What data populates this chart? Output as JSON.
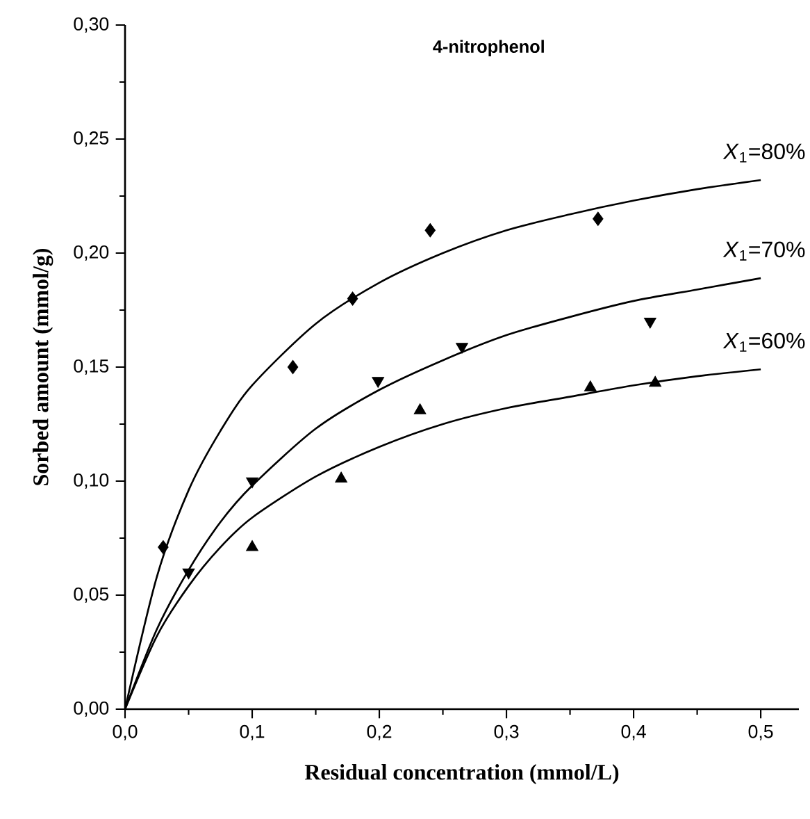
{
  "chart_data": {
    "type": "scatter",
    "title": "4-nitrophenol",
    "xlabel": "Residual concentration (mmol/L)",
    "ylabel": "Sorbed amount (mmol/g)",
    "xlim": [
      0,
      0.53
    ],
    "ylim": [
      0,
      0.3
    ],
    "xticks": [
      {
        "value": 0,
        "label": "0,0"
      },
      {
        "value": 0.1,
        "label": "0,1"
      },
      {
        "value": 0.2,
        "label": "0,2"
      },
      {
        "value": 0.3,
        "label": "0,3"
      },
      {
        "value": 0.4,
        "label": "0,4"
      },
      {
        "value": 0.5,
        "label": "0,5"
      }
    ],
    "yticks": [
      {
        "value": 0,
        "label": "0,00"
      },
      {
        "value": 0.05,
        "label": "0,05"
      },
      {
        "value": 0.1,
        "label": "0,10"
      },
      {
        "value": 0.15,
        "label": "0,15"
      },
      {
        "value": 0.2,
        "label": "0,20"
      },
      {
        "value": 0.25,
        "label": "0,25"
      },
      {
        "value": 0.3,
        "label": "0,30"
      }
    ],
    "grid": false,
    "series": [
      {
        "marker": "diamond",
        "color": "#000000",
        "x": [
          0.03,
          0.132,
          0.179,
          0.24,
          0.372
        ],
        "values": [
          0.071,
          0.15,
          0.18,
          0.21,
          0.215
        ]
      },
      {
        "marker": "triangle-down",
        "color": "#000000",
        "x": [
          0.05,
          0.1,
          0.199,
          0.265,
          0.413
        ],
        "values": [
          0.06,
          0.1,
          0.144,
          0.159,
          0.17
        ]
      },
      {
        "marker": "triangle",
        "color": "#000000",
        "x": [
          0.1,
          0.17,
          0.232,
          0.366,
          0.417
        ],
        "values": [
          0.071,
          0.101,
          0.131,
          0.141,
          0.143
        ]
      },
      {
        "type": "line",
        "name": "*X*$_{1}$=80%",
        "color": "#000000",
        "line_style": "solid",
        "x": [
          0,
          0.025,
          0.05,
          0.075,
          0.1,
          0.15,
          0.2,
          0.25,
          0.3,
          0.35,
          0.4,
          0.45,
          0.5
        ],
        "values": [
          0,
          0.058,
          0.096,
          0.122,
          0.142,
          0.169,
          0.187,
          0.2,
          0.21,
          0.217,
          0.223,
          0.228,
          0.232
        ]
      },
      {
        "type": "line",
        "name": "*X*$_{1}$=70%",
        "color": "#000000",
        "line_style": "solid",
        "x": [
          0,
          0.025,
          0.05,
          0.075,
          0.1,
          0.15,
          0.2,
          0.25,
          0.3,
          0.35,
          0.4,
          0.45,
          0.5
        ],
        "values": [
          0,
          0.035,
          0.061,
          0.082,
          0.098,
          0.123,
          0.14,
          0.153,
          0.164,
          0.172,
          0.179,
          0.184,
          0.189
        ]
      },
      {
        "type": "line",
        "name": "*X*$_{1}$=60%",
        "color": "#000000",
        "line_style": "solid",
        "x": [
          0,
          0.025,
          0.05,
          0.075,
          0.1,
          0.15,
          0.2,
          0.25,
          0.3,
          0.35,
          0.4,
          0.45,
          0.5
        ],
        "values": [
          0,
          0.032,
          0.054,
          0.071,
          0.084,
          0.102,
          0.115,
          0.125,
          0.132,
          0.137,
          0.142,
          0.146,
          0.149
        ]
      }
    ]
  }
}
